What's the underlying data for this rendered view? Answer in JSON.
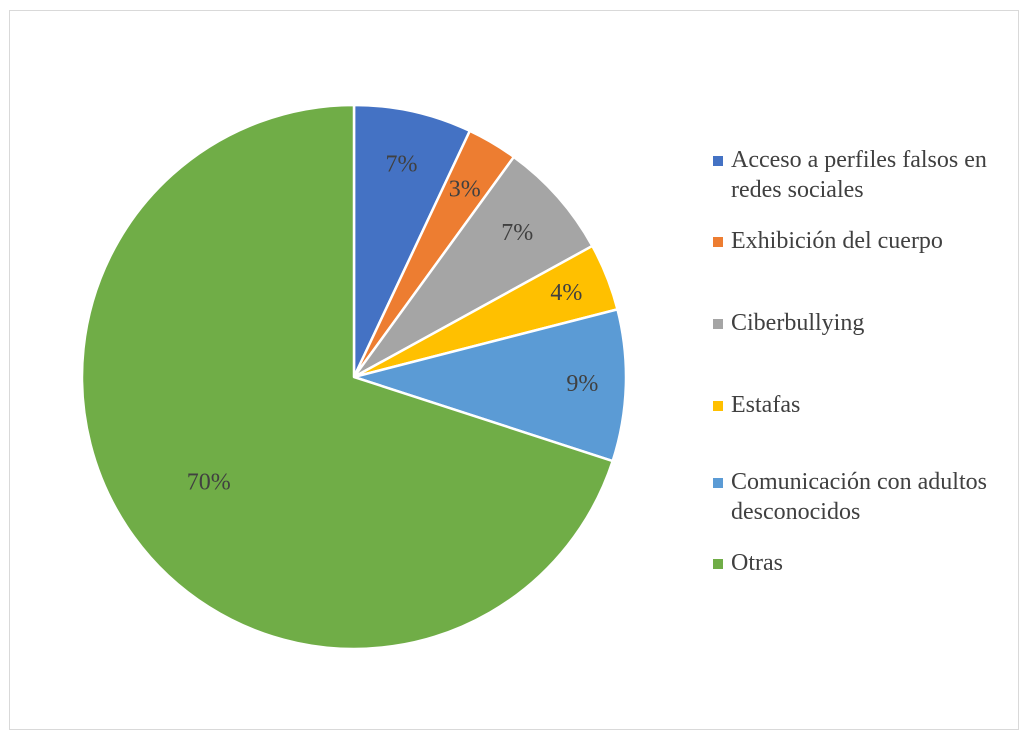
{
  "chart_data": {
    "type": "pie",
    "title": "",
    "slices": [
      {
        "label": "Acceso a perfiles falsos en redes sociales",
        "value": 7,
        "value_label": "7%",
        "color": "#4472C4"
      },
      {
        "label": "Exhibición del cuerpo",
        "value": 3,
        "value_label": "3%",
        "color": "#ED7D31"
      },
      {
        "label": "Ciberbullying",
        "value": 7,
        "value_label": "7%",
        "color": "#A5A5A5"
      },
      {
        "label": "Estafas",
        "value": 4,
        "value_label": "4%",
        "color": "#FFC000"
      },
      {
        "label": "Comunicación con adultos desconocidos",
        "value": 9,
        "value_label": "9%",
        "color": "#5B9BD5"
      },
      {
        "label": "Otras",
        "value": 70,
        "value_label": "70%",
        "color": "#70AD47"
      }
    ],
    "legend_position": "right",
    "start_angle": "12 o'clock",
    "direction": "clockwise"
  }
}
